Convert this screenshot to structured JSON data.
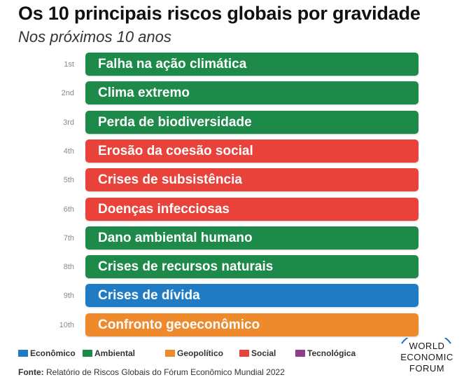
{
  "chart_data": {
    "type": "table",
    "title": "Os 10 principais riscos globais por gravidade",
    "subtitle": "Nos próximos 10 anos",
    "rows": [
      {
        "rank": "1st",
        "label": "Falha na ação climática",
        "category": "Ambiental"
      },
      {
        "rank": "2nd",
        "label": "Clima extremo",
        "category": "Ambiental"
      },
      {
        "rank": "3rd",
        "label": "Perda de biodiversidade",
        "category": "Ambiental"
      },
      {
        "rank": "4th",
        "label": "Erosão da coesão social",
        "category": "Social"
      },
      {
        "rank": "5th",
        "label": "Crises de subsistência",
        "category": "Social"
      },
      {
        "rank": "6th",
        "label": "Doenças infecciosas",
        "category": "Social"
      },
      {
        "rank": "7th",
        "label": "Dano ambiental humano",
        "category": "Ambiental"
      },
      {
        "rank": "8th",
        "label": "Crises de recursos naturais",
        "category": "Ambiental"
      },
      {
        "rank": "9th",
        "label": "Crises de dívida",
        "category": "Econômico"
      },
      {
        "rank": "10th",
        "label": "Confronto geoeconômico",
        "category": "Geopolítico"
      }
    ],
    "legend": [
      {
        "label": "Econômico",
        "color": "#1f7cc4"
      },
      {
        "label": "Ambiental",
        "color": "#1d8a4a"
      },
      {
        "label": "Geopolítico",
        "color": "#ef8a2c"
      },
      {
        "label": "Social",
        "color": "#e8423b"
      },
      {
        "label": "Tecnológica",
        "color": "#8e3d8f"
      }
    ]
  },
  "source": {
    "label": "Fonte:",
    "text": "Relatório de Riscos Globais do Fórum Econômico Mundial 2022"
  },
  "logo": {
    "lines": [
      "WORLD",
      "ECONOMIC",
      "FORUM"
    ]
  }
}
